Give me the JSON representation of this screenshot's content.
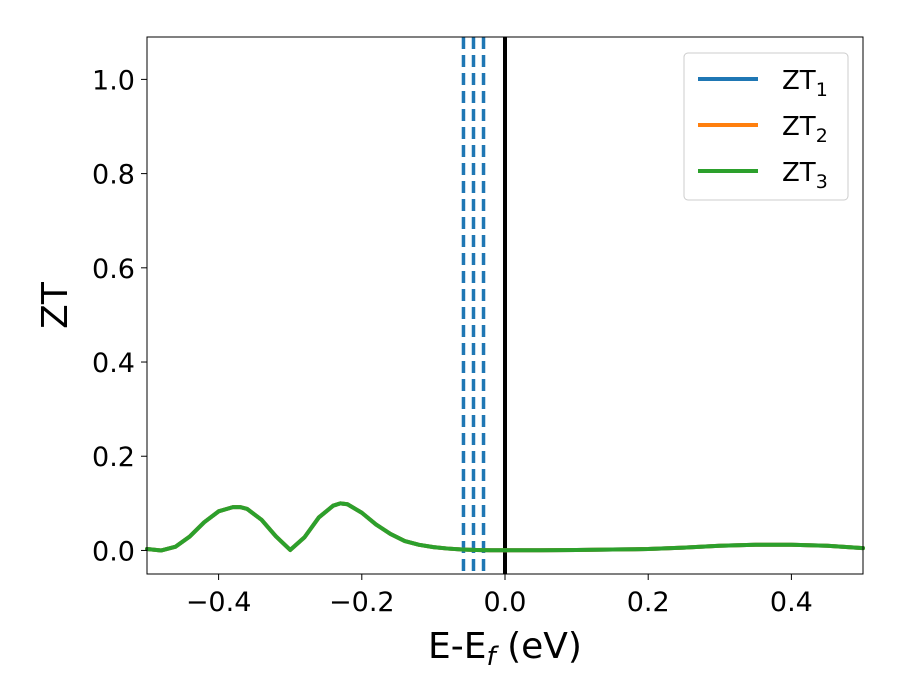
{
  "chart_data": {
    "type": "line",
    "title": "",
    "xlabel": {
      "main": "E-E",
      "sub": "f",
      "unit": " (eV)"
    },
    "ylabel": "ZT",
    "xlim": [
      -0.5,
      0.5
    ],
    "ylim": [
      -0.05,
      1.09
    ],
    "x_ticks": [
      {
        "value": -0.4,
        "label": "−0.4"
      },
      {
        "value": -0.2,
        "label": "−0.2"
      },
      {
        "value": 0.0,
        "label": "0.0"
      },
      {
        "value": 0.2,
        "label": "0.2"
      },
      {
        "value": 0.4,
        "label": "0.4"
      }
    ],
    "y_ticks": [
      {
        "value": 0.0,
        "label": "0.0"
      },
      {
        "value": 0.2,
        "label": "0.2"
      },
      {
        "value": 0.4,
        "label": "0.4"
      },
      {
        "value": 0.6,
        "label": "0.6"
      },
      {
        "value": 0.8,
        "label": "0.8"
      },
      {
        "value": 1.0,
        "label": "1.0"
      }
    ],
    "grid": false,
    "legend_position": "top-right",
    "x": [
      -0.5,
      -0.48,
      -0.46,
      -0.44,
      -0.42,
      -0.4,
      -0.38,
      -0.37,
      -0.36,
      -0.34,
      -0.32,
      -0.3,
      -0.28,
      -0.26,
      -0.24,
      -0.23,
      -0.22,
      -0.2,
      -0.18,
      -0.16,
      -0.14,
      -0.12,
      -0.1,
      -0.08,
      -0.06,
      -0.04,
      -0.02,
      0.0,
      0.05,
      0.1,
      0.15,
      0.2,
      0.25,
      0.3,
      0.35,
      0.4,
      0.45,
      0.5
    ],
    "series": [
      {
        "name_main": "ZT",
        "name_sub": "1",
        "color": "#1f77b4",
        "y": [
          0.003,
          0.0,
          0.008,
          0.03,
          0.06,
          0.083,
          0.092,
          0.092,
          0.088,
          0.065,
          0.03,
          0.001,
          0.028,
          0.07,
          0.095,
          0.1,
          0.098,
          0.08,
          0.055,
          0.035,
          0.02,
          0.012,
          0.007,
          0.004,
          0.002,
          0.001,
          0.0005,
          0.0003,
          0.0005,
          0.001,
          0.002,
          0.003,
          0.006,
          0.01,
          0.012,
          0.012,
          0.01,
          0.005
        ]
      },
      {
        "name_main": "ZT",
        "name_sub": "2",
        "color": "#ff7f0e",
        "y": [
          0.003,
          0.0,
          0.008,
          0.03,
          0.06,
          0.083,
          0.092,
          0.092,
          0.088,
          0.065,
          0.03,
          0.001,
          0.028,
          0.07,
          0.095,
          0.1,
          0.098,
          0.08,
          0.055,
          0.035,
          0.02,
          0.012,
          0.007,
          0.004,
          0.002,
          0.001,
          0.0005,
          0.0003,
          0.0005,
          0.001,
          0.002,
          0.003,
          0.006,
          0.01,
          0.012,
          0.012,
          0.01,
          0.005
        ]
      },
      {
        "name_main": "ZT",
        "name_sub": "3",
        "color": "#2ca02c",
        "y": [
          0.003,
          0.0,
          0.008,
          0.03,
          0.06,
          0.083,
          0.092,
          0.092,
          0.088,
          0.065,
          0.03,
          0.001,
          0.028,
          0.07,
          0.095,
          0.1,
          0.098,
          0.08,
          0.055,
          0.035,
          0.02,
          0.012,
          0.007,
          0.004,
          0.002,
          0.001,
          0.0005,
          0.0003,
          0.0005,
          0.001,
          0.002,
          0.003,
          0.006,
          0.01,
          0.012,
          0.012,
          0.01,
          0.005
        ]
      }
    ],
    "reference_lines": [
      {
        "x": -0.058,
        "color": "#1f77b4",
        "style": "dashed"
      },
      {
        "x": -0.044,
        "color": "#1f77b4",
        "style": "dashed"
      },
      {
        "x": -0.03,
        "color": "#1f77b4",
        "style": "dashed"
      },
      {
        "x": 0.0,
        "color": "#000000",
        "style": "solid"
      }
    ]
  }
}
